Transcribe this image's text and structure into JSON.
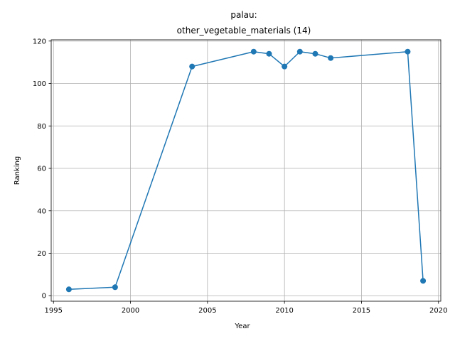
{
  "chart_data": {
    "type": "line",
    "title_line1": "palau:",
    "title_line2": "other_vegetable_materials (14)",
    "xlabel": "Year",
    "ylabel": "Ranking",
    "xlim": [
      1994.85,
      2020.15
    ],
    "ylim": [
      -2.6,
      120.6
    ],
    "xticks": [
      1995,
      2000,
      2005,
      2010,
      2015,
      2020
    ],
    "yticks": [
      0,
      20,
      40,
      60,
      80,
      100,
      120
    ],
    "grid": true,
    "color": "#1f77b4",
    "series": [
      {
        "x": [
          1996,
          1999,
          2004,
          2008,
          2009,
          2010,
          2011,
          2012,
          2013,
          2018,
          2019
        ],
        "values": [
          3,
          4,
          108,
          115,
          114,
          108,
          115,
          114,
          112,
          115,
          7
        ]
      }
    ]
  }
}
